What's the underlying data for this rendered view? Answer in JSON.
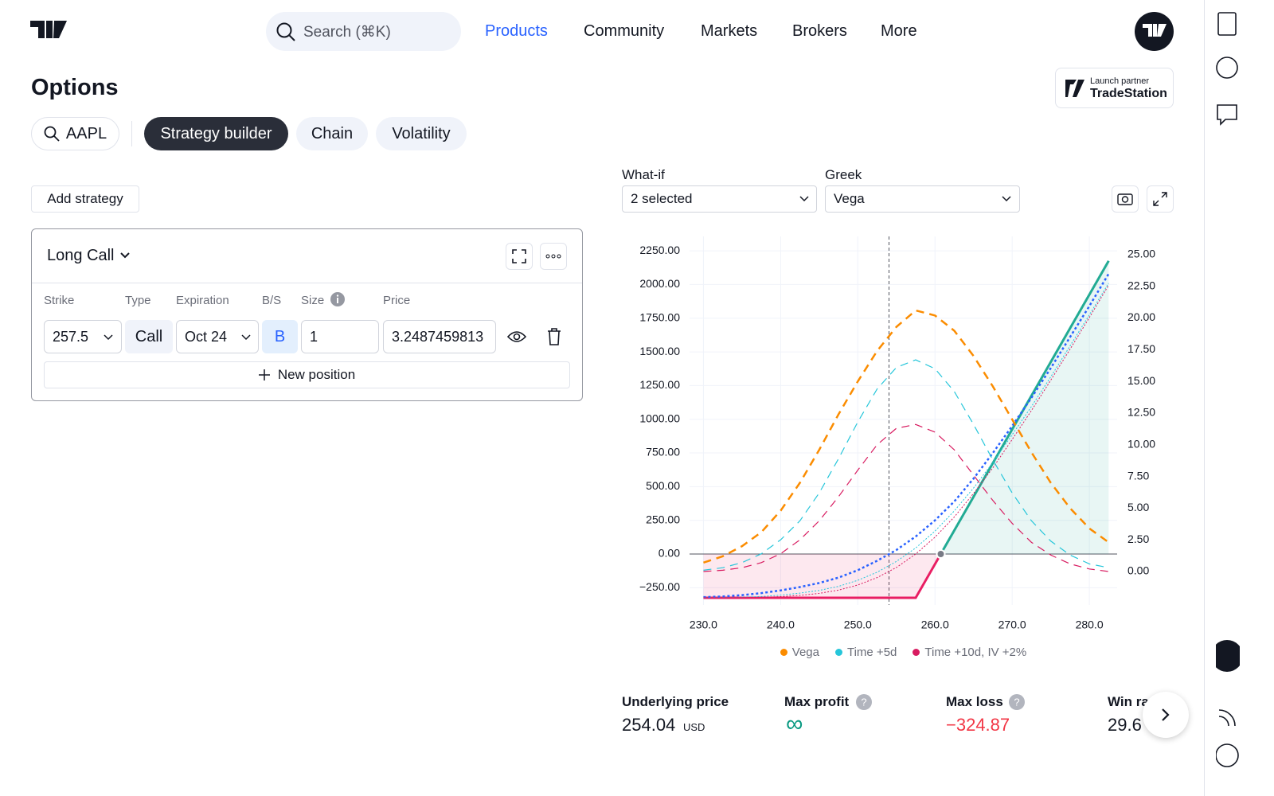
{
  "header": {
    "search": "Search (⌘K)",
    "nav": [
      "Products",
      "Community",
      "Markets",
      "Brokers",
      "More"
    ]
  },
  "page": {
    "title": "Options",
    "partner_caption": "Launch partner",
    "partner_name": "TradeStation",
    "symbol": "AAPL",
    "tabs": [
      "Strategy builder",
      "Chain",
      "Volatility"
    ],
    "add_strategy": "Add strategy"
  },
  "strategy": {
    "name": "Long Call",
    "columns": [
      "Strike",
      "Type",
      "Expiration",
      "B/S",
      "Size",
      "Price"
    ],
    "position": [
      "257.5",
      "Call",
      "Oct 24",
      "B",
      "1",
      "3.2487459813"
    ],
    "new_position": "New position"
  },
  "controls": {
    "whatif_label": "What-if",
    "whatif_value": "2 selected",
    "greek_label": "Greek",
    "greek_value": "Vega"
  },
  "chart_data": {
    "type": "line",
    "x": [
      230,
      232.5,
      235,
      237.5,
      240,
      242.5,
      245,
      247.5,
      250,
      252.5,
      255,
      257.5,
      260,
      262.5,
      265,
      267.5,
      270,
      272.5,
      275,
      277.5,
      280,
      282.5
    ],
    "xlim": [
      228.2,
      283.6
    ],
    "xticks": [
      {
        "value": 230,
        "label": "230.0"
      },
      {
        "value": 240,
        "label": "240.0"
      },
      {
        "value": 250,
        "label": "250.0"
      },
      {
        "value": 260,
        "label": "260.0"
      },
      {
        "value": 270,
        "label": "270.0"
      },
      {
        "value": 280,
        "label": "280.0"
      }
    ],
    "ylim": [
      -378,
      2357
    ],
    "yticks": [
      {
        "value": -250,
        "label": "−250.00"
      },
      {
        "value": 0,
        "label": "0.00"
      },
      {
        "value": 250,
        "label": "250.00"
      },
      {
        "value": 500,
        "label": "500.00"
      },
      {
        "value": 750,
        "label": "750.00"
      },
      {
        "value": 1000,
        "label": "1000.00"
      },
      {
        "value": 1250,
        "label": "1250.00"
      },
      {
        "value": 1500,
        "label": "1500.00"
      },
      {
        "value": 1750,
        "label": "1750.00"
      },
      {
        "value": 2000,
        "label": "2000.00"
      },
      {
        "value": 2250,
        "label": "2250.00"
      }
    ],
    "y2lim": [
      -2.64,
      26.44
    ],
    "y2ticks": [
      {
        "value": 0,
        "label": "0.00"
      },
      {
        "value": 2.5,
        "label": "2.50"
      },
      {
        "value": 5,
        "label": "5.00"
      },
      {
        "value": 7.5,
        "label": "7.50"
      },
      {
        "value": 10,
        "label": "10.00"
      },
      {
        "value": 12.5,
        "label": "12.50"
      },
      {
        "value": 15,
        "label": "15.00"
      },
      {
        "value": 17.5,
        "label": "17.50"
      },
      {
        "value": 20,
        "label": "20.00"
      },
      {
        "value": 22.5,
        "label": "22.50"
      },
      {
        "value": 25,
        "label": "25.00"
      }
    ],
    "grid": true,
    "series": [
      {
        "color": "#e91e63",
        "profit_color": "#22ab94",
        "style": "solid",
        "width": 3,
        "values": [
          -324.87,
          -324.87,
          -324.87,
          -324.87,
          -324.87,
          -324.87,
          -324.87,
          -324.87,
          -324.87,
          -324.87,
          -324.87,
          -324.87,
          -74.87,
          175.13,
          425.13,
          675.13,
          925.13,
          1175.13,
          1425.13,
          1675.13,
          1925.13,
          2175.13
        ]
      },
      {
        "color": "#2962ff",
        "style": "dotted",
        "width": 2.5,
        "values": [
          -320,
          -315,
          -305,
          -290,
          -270,
          -245,
          -215,
          -175,
          -120,
          -50,
          30,
          130,
          250,
          390,
          560,
          750,
          950,
          1160,
          1380,
          1610,
          1840,
          2080
        ]
      },
      {
        "color": "#26c6da",
        "style": "fine",
        "width": 1,
        "values": [
          -324,
          -323,
          -320,
          -315,
          -305,
          -290,
          -270,
          -240,
          -195,
          -135,
          -55,
          45,
          170,
          320,
          490,
          680,
          885,
          1095,
          1315,
          1545,
          1775,
          2010
        ]
      },
      {
        "color": "#d81b60",
        "style": "fine",
        "width": 1,
        "values": [
          -324,
          -324,
          -323,
          -321,
          -316,
          -307,
          -292,
          -268,
          -230,
          -175,
          -100,
          0,
          125,
          275,
          450,
          640,
          850,
          1065,
          1290,
          1520,
          1755,
          1995
        ]
      },
      {
        "name": "Vega",
        "color": "#fb8c00",
        "style": "dashed",
        "width": 2.5,
        "axis": "y2",
        "values": [
          0.7,
          1.2,
          2.0,
          3.1,
          4.8,
          7.0,
          9.6,
          12.4,
          15.0,
          17.4,
          19.3,
          20.6,
          20.2,
          19.0,
          17.0,
          14.6,
          12.0,
          9.4,
          7.0,
          5.0,
          3.4,
          2.3
        ]
      },
      {
        "name": "Time +5d",
        "color": "#26c6da",
        "style": "dashed",
        "width": 1.2,
        "axis": "y2",
        "values": [
          0.1,
          0.3,
          0.7,
          1.4,
          2.5,
          4.0,
          6.2,
          8.9,
          11.8,
          14.4,
          16.1,
          16.7,
          16.0,
          14.2,
          11.6,
          8.8,
          6.2,
          4.0,
          2.4,
          1.3,
          0.6,
          0.3
        ]
      },
      {
        "name": "Time +10d, IV +2%",
        "color": "#d81b60",
        "style": "dashed",
        "width": 1.2,
        "axis": "y2",
        "values": [
          0.0,
          0.1,
          0.3,
          0.7,
          1.4,
          2.5,
          4.0,
          5.9,
          8.0,
          10.0,
          11.3,
          11.6,
          11.0,
          9.6,
          7.6,
          5.6,
          3.8,
          2.3,
          1.3,
          0.6,
          0.2,
          0.0
        ]
      }
    ]
  },
  "stats": [
    {
      "label": "Underlying price",
      "value": 254.04,
      "unit": "USD"
    },
    {
      "label": "Max profit",
      "value": "∞"
    },
    {
      "label": "Max loss",
      "value": "−324.87"
    },
    {
      "label": "Win ra",
      "value": "29.6"
    }
  ]
}
